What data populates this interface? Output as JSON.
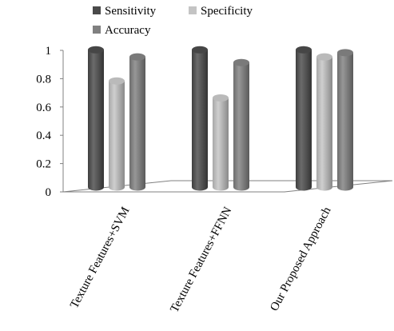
{
  "chart_data": {
    "type": "bar",
    "categories": [
      "Texture Features+SVM",
      "Texture Features+FFNN",
      "Our Proposed Approach"
    ],
    "series": [
      {
        "name": "Sensitivity",
        "values": [
          0.97,
          0.97,
          0.97
        ],
        "color": "#4a4a4a"
      },
      {
        "name": "Specificity",
        "values": [
          0.75,
          0.63,
          0.92
        ],
        "color": "#c4c4c4"
      },
      {
        "name": "Accuracy",
        "values": [
          0.92,
          0.88,
          0.95
        ],
        "color": "#808080"
      }
    ],
    "title": "",
    "xlabel": "",
    "ylabel": "",
    "ylim": [
      0,
      1
    ],
    "yticks": [
      "0",
      "0.2",
      "0.4",
      "0.6",
      "0.8",
      "1"
    ],
    "legend_position": "top-left",
    "grid": false,
    "style": "3d-cylinder"
  }
}
